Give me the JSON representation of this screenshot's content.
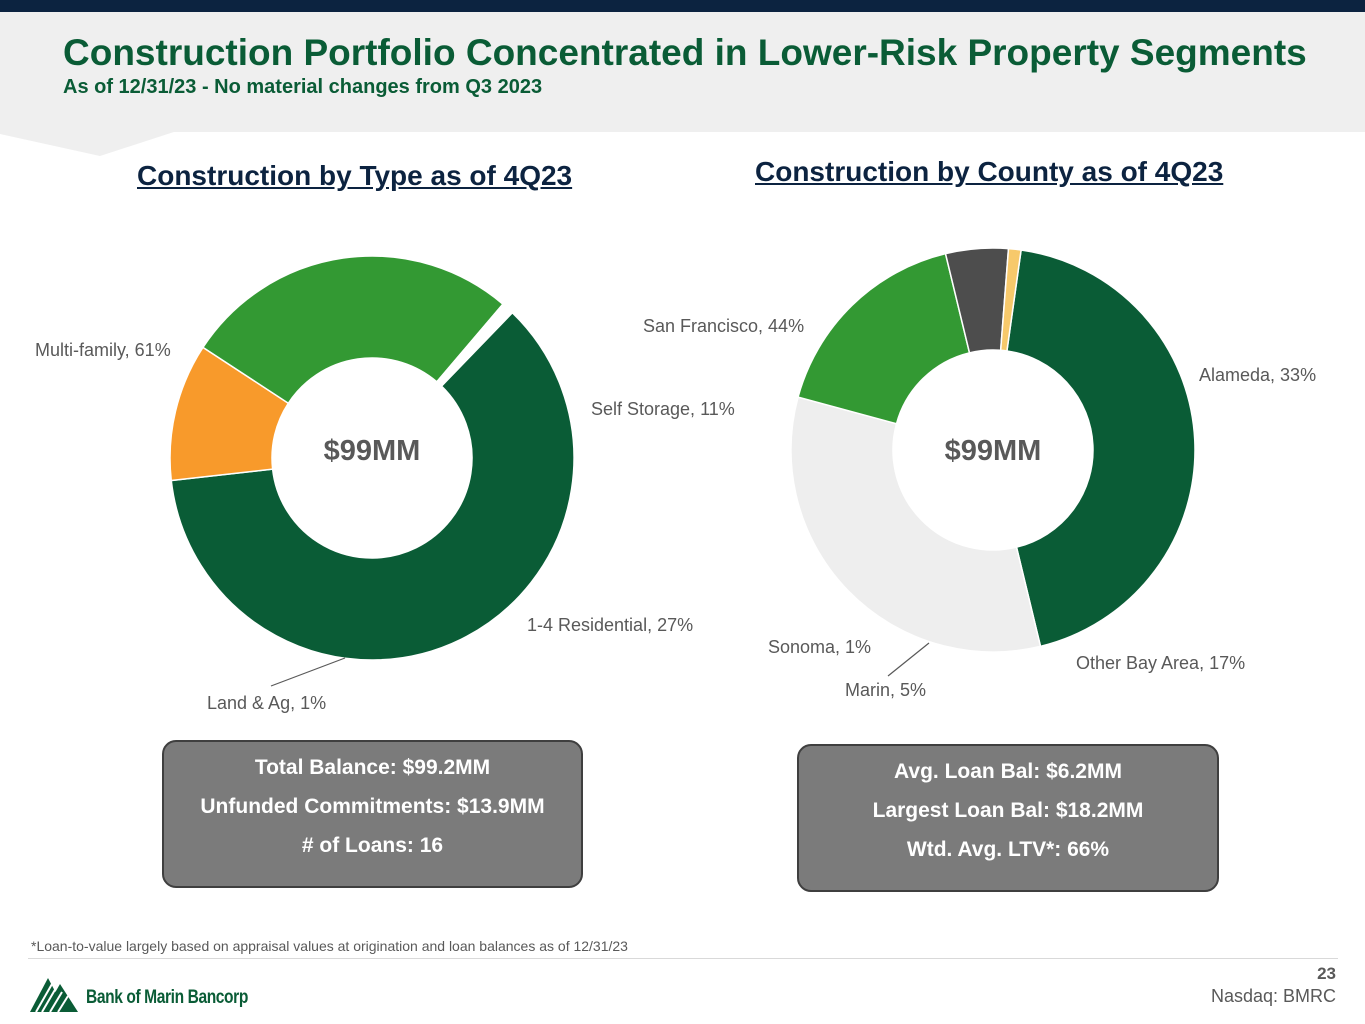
{
  "header": {
    "title": "Construction Portfolio Concentrated in Lower-Risk Property Segments",
    "subtitle": "As of 12/31/23 - No material changes from Q3 2023"
  },
  "chart_data": [
    {
      "type": "pie",
      "title": "Construction by Type as of 4Q23",
      "center_label": "$99MM",
      "slices": [
        {
          "label": "Multi-family, 61%",
          "name": "Multi-family",
          "value": 61,
          "color": "#0a5c36"
        },
        {
          "label": "Self Storage, 11%",
          "name": "Self Storage",
          "value": 11,
          "color": "#f89a2b"
        },
        {
          "label": "1-4 Residential, 27%",
          "name": "1-4 Residential",
          "value": 27,
          "color": "#339933"
        },
        {
          "label": "Land & Ag, 1%",
          "name": "Land & Ag",
          "value": 1,
          "color": "#ffffff"
        }
      ]
    },
    {
      "type": "pie",
      "title": "Construction by County as of 4Q23",
      "center_label": "$99MM",
      "slices": [
        {
          "label": "San Francisco, 44%",
          "name": "San Francisco",
          "value": 44,
          "color": "#0a5c36"
        },
        {
          "label": "Alameda, 33%",
          "name": "Alameda",
          "value": 33,
          "color": "#eeeeee"
        },
        {
          "label": "Other Bay Area, 17%",
          "name": "Other Bay Area",
          "value": 17,
          "color": "#339933"
        },
        {
          "label": "Marin, 5%",
          "name": "Marin",
          "value": 5,
          "color": "#4d4d4d"
        },
        {
          "label": "Sonoma, 1%",
          "name": "Sonoma",
          "value": 1,
          "color": "#f7c96b"
        }
      ]
    }
  ],
  "summary_left": {
    "total_balance": "Total Balance: $99.2MM",
    "unfunded": "Unfunded Commitments: $13.9MM",
    "loans": "# of Loans: 16"
  },
  "summary_right": {
    "avg_loan": "Avg. Loan Bal: $6.2MM",
    "largest_loan": "Largest Loan Bal: $18.2MM",
    "ltv": "Wtd. Avg. LTV*: 66%"
  },
  "footer": {
    "footnote": "*Loan-to-value largely based on appraisal values at origination and loan balances as of 12/31/23",
    "page_number": "23",
    "ticker": "Nasdaq: BMRC",
    "company": "Bank of Marin Bancorp"
  }
}
